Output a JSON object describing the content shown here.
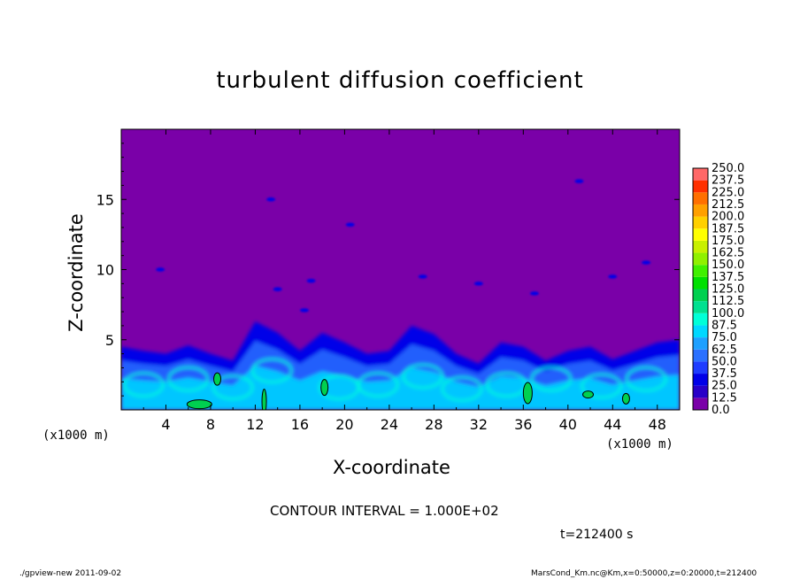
{
  "title": "turbulent diffusion coefficient",
  "contour_interval_text": "CONTOUR INTERVAL = 1.000E+02",
  "time_text": "t=212400 s",
  "footer_left": "./gpview-new   2011-09-02",
  "footer_right": "MarsCond_Km.nc@Km,x=0:50000,z=0:20000,t=212400",
  "chart_data": {
    "type": "heatmap",
    "title": "turbulent diffusion coefficient",
    "xlabel": "X-coordinate",
    "ylabel": "Z-coordinate",
    "x_unit": "(x1000 m)",
    "xlim": [
      0,
      50
    ],
    "ylim": [
      0,
      20
    ],
    "x_ticks": [
      4,
      8,
      12,
      16,
      20,
      24,
      28,
      32,
      36,
      40,
      44,
      48
    ],
    "y_ticks": [
      5,
      10,
      15
    ],
    "colorbar": {
      "min": 0.0,
      "max": 250.0,
      "step": 12.5,
      "labels": [
        "0.0",
        "12.5",
        "25.0",
        "37.5",
        "50.0",
        "62.5",
        "75.0",
        "87.5",
        "100.0",
        "112.5",
        "125.0",
        "137.5",
        "150.0",
        "162.5",
        "175.0",
        "187.5",
        "200.0",
        "212.5",
        "225.0",
        "237.5",
        "250.0"
      ],
      "colors": [
        "#7a00a8",
        "#2800c8",
        "#0000e8",
        "#1e3cff",
        "#2a70ff",
        "#1ea0ff",
        "#00d8ff",
        "#00ffd8",
        "#00e090",
        "#00d050",
        "#00e000",
        "#40f000",
        "#90f000",
        "#c8f000",
        "#ffff00",
        "#ffd000",
        "#ffa000",
        "#ff7000",
        "#ff3000",
        "#ff6868",
        "#ff9090"
      ]
    },
    "background_value": 0.0,
    "turbulent_layer": {
      "description_free": true,
      "top_profile_x": [
        0,
        2,
        4,
        6,
        8,
        10,
        12,
        14,
        16,
        18,
        20,
        22,
        24,
        26,
        28,
        30,
        32,
        34,
        36,
        38,
        40,
        42,
        44,
        46,
        48,
        50
      ],
      "top_profile_z": [
        4.5,
        4.2,
        4.0,
        4.6,
        4.0,
        3.5,
        6.3,
        5.5,
        4.2,
        5.5,
        4.8,
        4.0,
        4.2,
        6.0,
        5.4,
        4.0,
        3.3,
        4.8,
        4.5,
        3.5,
        4.2,
        4.5,
        3.6,
        4.2,
        4.8,
        5.0
      ],
      "core_value": 87.5,
      "contour_level": 100.0
    }
  }
}
